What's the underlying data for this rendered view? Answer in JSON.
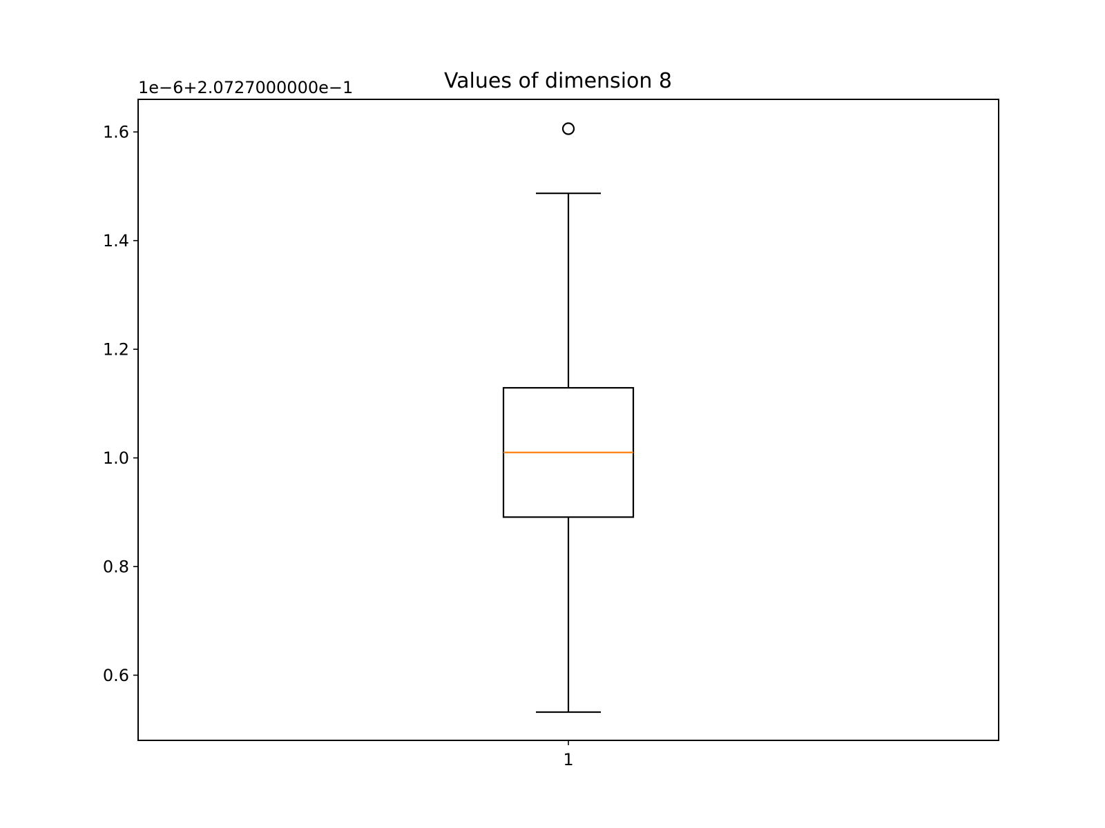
{
  "chart_data": {
    "type": "box",
    "title": "Values of dimension 8",
    "xlabel": "",
    "ylabel": "",
    "y_offset_label": "1e−6+2.0727000000e−1",
    "x_ticks": [
      "1"
    ],
    "y_ticks": [
      "0.6",
      "0.8",
      "1.0",
      "1.2",
      "1.4",
      "1.6"
    ],
    "y_tick_values": [
      0.6,
      0.8,
      1.0,
      1.2,
      1.4,
      1.6
    ],
    "ylim": [
      0.48,
      1.66
    ],
    "grid": false,
    "legend": "none",
    "boxes": [
      {
        "category": "1",
        "whisker_low": 0.532,
        "q1": 0.891,
        "median": 1.01,
        "q3": 1.129,
        "whisker_high": 1.487,
        "outliers": [
          1.606
        ]
      }
    ],
    "colors": {
      "box": "#000000",
      "median": "#ff7f0e",
      "outlier": "#000000"
    }
  }
}
